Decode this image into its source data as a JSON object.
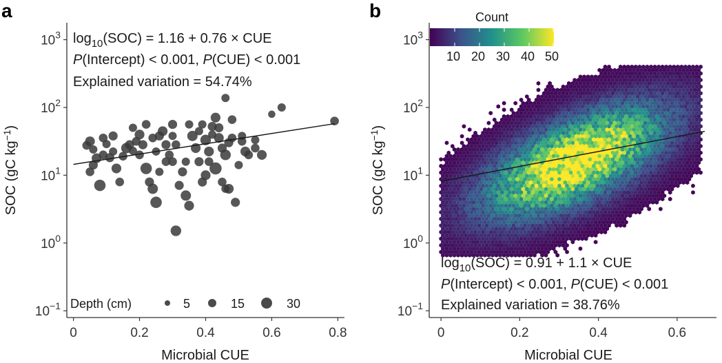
{
  "chart_data": [
    {
      "panel": "a",
      "type": "scatter",
      "xlabel": "Microbial CUE",
      "ylabel": "SOC  (gC kg",
      "ylabel_sup": "−1",
      "ylabel_close": ")",
      "xlim": [
        -0.02,
        0.82
      ],
      "ylim_log10": [
        -1.1,
        3.25
      ],
      "x_ticks": [
        0,
        0.2,
        0.4,
        0.6,
        0.8
      ],
      "x_tick_labels": [
        "0",
        "0.2",
        "0.4",
        "0.6",
        "0.8"
      ],
      "y_ticks_log10": [
        -1,
        0,
        1,
        2,
        3
      ],
      "y_tick_base": "10",
      "y_tick_exponents": [
        "−1",
        "0",
        "1",
        "2",
        "3"
      ],
      "fit": {
        "intercept": 1.16,
        "slope": 0.76,
        "x_range": [
          0.0,
          0.79
        ]
      },
      "annotation_lines": [
        {
          "pre": "log",
          "sub": "10",
          "post": "(SOC) = 1.16 + 0.76 × CUE"
        },
        {
          "i1": "P",
          "t1": "(Intercept) < 0.001, ",
          "i2": "P",
          "t2": "(CUE) < 0.001"
        },
        {
          "text": "Explained variation = 54.74%"
        }
      ],
      "size_legend": {
        "title": "Depth (cm)",
        "labels": [
          "5",
          "15",
          "30"
        ],
        "values": [
          5,
          15,
          30
        ]
      },
      "points": [
        [
          0.04,
          1.44,
          10
        ],
        [
          0.05,
          1.5,
          15
        ],
        [
          0.06,
          1.38,
          8
        ],
        [
          0.05,
          1.05,
          10
        ],
        [
          0.06,
          1.15,
          12
        ],
        [
          0.07,
          1.25,
          15
        ],
        [
          0.08,
          0.85,
          25
        ],
        [
          0.09,
          1.3,
          10
        ],
        [
          0.1,
          1.46,
          8
        ],
        [
          0.11,
          1.26,
          12
        ],
        [
          0.12,
          1.35,
          8
        ],
        [
          0.13,
          1.1,
          15
        ],
        [
          0.14,
          0.9,
          10
        ],
        [
          0.15,
          1.28,
          10
        ],
        [
          0.16,
          1.4,
          18
        ],
        [
          0.17,
          1.45,
          12
        ],
        [
          0.18,
          1.36,
          8
        ],
        [
          0.19,
          1.5,
          10
        ],
        [
          0.2,
          1.3,
          10
        ],
        [
          0.2,
          1.6,
          15
        ],
        [
          0.21,
          1.45,
          12
        ],
        [
          0.22,
          1.1,
          25
        ],
        [
          0.23,
          0.9,
          12
        ],
        [
          0.24,
          0.8,
          18
        ],
        [
          0.25,
          0.6,
          25
        ],
        [
          0.25,
          1.35,
          8
        ],
        [
          0.26,
          1.58,
          12
        ],
        [
          0.27,
          1.65,
          15
        ],
        [
          0.28,
          1.45,
          12
        ],
        [
          0.29,
          1.3,
          10
        ],
        [
          0.3,
          1.2,
          10
        ],
        [
          0.3,
          1.75,
          12
        ],
        [
          0.31,
          0.18,
          20
        ],
        [
          0.32,
          0.85,
          12
        ],
        [
          0.33,
          1.05,
          12
        ],
        [
          0.34,
          0.7,
          18
        ],
        [
          0.35,
          0.55,
          15
        ],
        [
          0.36,
          1.58,
          18
        ],
        [
          0.37,
          1.4,
          15
        ],
        [
          0.38,
          1.2,
          12
        ],
        [
          0.38,
          1.65,
          8
        ],
        [
          0.39,
          0.9,
          12
        ],
        [
          0.4,
          1.0,
          15
        ],
        [
          0.4,
          1.52,
          20
        ],
        [
          0.41,
          1.35,
          15
        ],
        [
          0.42,
          1.72,
          12
        ],
        [
          0.43,
          1.1,
          30
        ],
        [
          0.44,
          1.55,
          15
        ],
        [
          0.45,
          0.9,
          10
        ],
        [
          0.45,
          1.4,
          12
        ],
        [
          0.46,
          0.8,
          8
        ],
        [
          0.46,
          1.3,
          20
        ],
        [
          0.47,
          1.48,
          12
        ],
        [
          0.48,
          1.55,
          10
        ],
        [
          0.49,
          0.6,
          12
        ],
        [
          0.5,
          1.15,
          8
        ],
        [
          0.51,
          1.5,
          10
        ],
        [
          0.52,
          1.35,
          15
        ],
        [
          0.53,
          1.3,
          10
        ],
        [
          0.55,
          1.4,
          10
        ],
        [
          0.57,
          1.3,
          15
        ],
        [
          0.46,
          2.14,
          8
        ],
        [
          0.48,
          1.82,
          10
        ],
        [
          0.44,
          1.7,
          12
        ],
        [
          0.41,
          1.2,
          10
        ],
        [
          0.39,
          1.75,
          8
        ],
        [
          0.43,
          1.85,
          15
        ],
        [
          0.47,
          0.8,
          15
        ],
        [
          0.18,
          1.7,
          8
        ],
        [
          0.22,
          1.75,
          10
        ],
        [
          0.24,
          1.55,
          10
        ],
        [
          0.3,
          1.58,
          8
        ],
        [
          0.28,
          1.2,
          10
        ],
        [
          0.26,
          1.05,
          8
        ],
        [
          0.12,
          1.58,
          12
        ],
        [
          0.09,
          1.55,
          10
        ],
        [
          0.51,
          1.58,
          8
        ],
        [
          0.63,
          2.0,
          8
        ],
        [
          0.6,
          1.9,
          5
        ],
        [
          0.79,
          1.8,
          10
        ],
        [
          0.55,
          1.52,
          8
        ],
        [
          0.35,
          1.75,
          8
        ],
        [
          0.31,
          1.45,
          10
        ],
        [
          0.34,
          1.2,
          8
        ],
        [
          0.42,
          1.6,
          8
        ]
      ]
    },
    {
      "panel": "b",
      "type": "heatmap",
      "xlabel": "Microbial CUE",
      "ylabel": "SOC  (gC kg",
      "ylabel_sup": "−1",
      "ylabel_close": ")",
      "xlim": [
        -0.03,
        0.7
      ],
      "ylim_log10": [
        -1.1,
        3.25
      ],
      "x_ticks": [
        0,
        0.2,
        0.4,
        0.6
      ],
      "x_tick_labels": [
        "0",
        "0.2",
        "0.4",
        "0.6"
      ],
      "y_ticks_log10": [
        -1,
        0,
        1,
        2,
        3
      ],
      "y_tick_base": "10",
      "y_tick_exponents": [
        "−1",
        "0",
        "1",
        "2",
        "3"
      ],
      "fit": {
        "intercept": 0.91,
        "slope": 1.1,
        "x_range": [
          0.0,
          0.67
        ]
      },
      "annotation_lines": [
        {
          "pre": "log",
          "sub": "10",
          "post": "(SOC) = 0.91 + 1.1 × CUE"
        },
        {
          "i1": "P",
          "t1": "(Intercept) < 0.001, ",
          "i2": "P",
          "t2": "(CUE) < 0.001"
        },
        {
          "text": "Explained variation = 38.76%"
        }
      ],
      "colorbar": {
        "title": "Count",
        "range": [
          0,
          50
        ],
        "tick_values": [
          10,
          20,
          30,
          40,
          50
        ],
        "tick_labels": [
          "10",
          "20",
          "30",
          "40",
          "50"
        ],
        "colors": [
          "#440154",
          "#3b528b",
          "#21918c",
          "#5ec962",
          "#fde725"
        ]
      },
      "density_model": {
        "center_x": 0.34,
        "center_y_log10": 1.2,
        "sd_x": 0.17,
        "sd_y": 0.52,
        "rho": 0.45,
        "cutoff": 0.035,
        "x_span": [
          0.0,
          0.66
        ],
        "y_span_log10": [
          -0.2,
          2.6
        ]
      }
    }
  ]
}
